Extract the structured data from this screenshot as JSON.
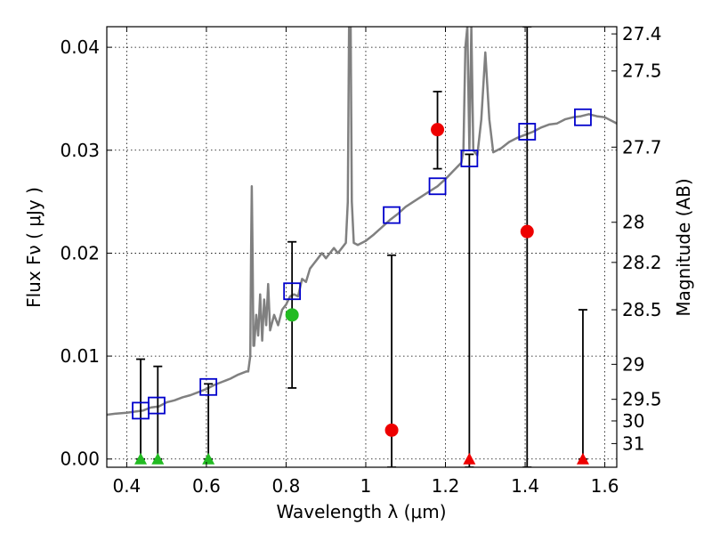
{
  "chart_data": {
    "type": "scatter",
    "title": "",
    "xlabel": "Wavelength  λ (μm)",
    "ylabel": "Flux  Fν  ( μJy )",
    "y2label": "Magnitude (AB)",
    "xlim": [
      0.35,
      1.63
    ],
    "ylim": [
      -0.0008,
      0.042
    ],
    "grid": true,
    "xticks": [
      0.4,
      0.6,
      0.8,
      1.0,
      1.2,
      1.4,
      1.6
    ],
    "xtick_labels": [
      "0.4",
      "0.6",
      "0.8",
      "1",
      "1.2",
      "1.4",
      "1.6"
    ],
    "yticks": [
      0.0,
      0.01,
      0.02,
      0.03,
      0.04
    ],
    "ytick_labels": [
      "0.00",
      "0.01",
      "0.02",
      "0.03",
      "0.04"
    ],
    "mag_ticks": [
      {
        "flux": 0.0413,
        "label": "27.4"
      },
      {
        "flux": 0.0377,
        "label": "27.5"
      },
      {
        "flux": 0.0303,
        "label": "27.7"
      },
      {
        "flux": 0.023,
        "label": "28"
      },
      {
        "flux": 0.0191,
        "label": "28.2"
      },
      {
        "flux": 0.0145,
        "label": "28.5"
      },
      {
        "flux": 0.0092,
        "label": "29"
      },
      {
        "flux": 0.0058,
        "label": "29.5"
      },
      {
        "flux": 0.0037,
        "label": "30"
      },
      {
        "flux": 0.0015,
        "label": "31"
      }
    ],
    "colors": {
      "sed": "#808080",
      "model_box": "#0000cc",
      "detection_green": "#22bb22",
      "detection_red": "#ee0000",
      "errorbar": "#000000"
    },
    "sed_curve": [
      [
        0.35,
        0.0043
      ],
      [
        0.37,
        0.0044
      ],
      [
        0.4,
        0.0045
      ],
      [
        0.42,
        0.0046
      ],
      [
        0.44,
        0.0047
      ],
      [
        0.46,
        0.005
      ],
      [
        0.48,
        0.0051
      ],
      [
        0.5,
        0.0055
      ],
      [
        0.52,
        0.0057
      ],
      [
        0.54,
        0.006
      ],
      [
        0.56,
        0.0062
      ],
      [
        0.58,
        0.0065
      ],
      [
        0.6,
        0.0068
      ],
      [
        0.62,
        0.0072
      ],
      [
        0.64,
        0.0075
      ],
      [
        0.66,
        0.0078
      ],
      [
        0.68,
        0.0082
      ],
      [
        0.7,
        0.0085
      ],
      [
        0.705,
        0.0085
      ],
      [
        0.71,
        0.01
      ],
      [
        0.712,
        0.02
      ],
      [
        0.714,
        0.0265
      ],
      [
        0.716,
        0.02
      ],
      [
        0.718,
        0.011
      ],
      [
        0.72,
        0.011
      ],
      [
        0.725,
        0.014
      ],
      [
        0.73,
        0.012
      ],
      [
        0.735,
        0.016
      ],
      [
        0.74,
        0.0115
      ],
      [
        0.745,
        0.0155
      ],
      [
        0.75,
        0.013
      ],
      [
        0.755,
        0.017
      ],
      [
        0.76,
        0.0125
      ],
      [
        0.77,
        0.014
      ],
      [
        0.78,
        0.013
      ],
      [
        0.79,
        0.0145
      ],
      [
        0.8,
        0.015
      ],
      [
        0.81,
        0.0158
      ],
      [
        0.82,
        0.016
      ],
      [
        0.83,
        0.0158
      ],
      [
        0.84,
        0.0175
      ],
      [
        0.85,
        0.0172
      ],
      [
        0.86,
        0.0185
      ],
      [
        0.87,
        0.019
      ],
      [
        0.88,
        0.0195
      ],
      [
        0.89,
        0.02
      ],
      [
        0.9,
        0.0195
      ],
      [
        0.91,
        0.02
      ],
      [
        0.92,
        0.0205
      ],
      [
        0.93,
        0.02
      ],
      [
        0.94,
        0.0205
      ],
      [
        0.95,
        0.021
      ],
      [
        0.955,
        0.025
      ],
      [
        0.958,
        0.042
      ],
      [
        0.962,
        0.042
      ],
      [
        0.965,
        0.025
      ],
      [
        0.97,
        0.021
      ],
      [
        0.98,
        0.0208
      ],
      [
        1.0,
        0.0212
      ],
      [
        1.02,
        0.0218
      ],
      [
        1.04,
        0.0225
      ],
      [
        1.06,
        0.0232
      ],
      [
        1.08,
        0.0238
      ],
      [
        1.1,
        0.0245
      ],
      [
        1.12,
        0.025
      ],
      [
        1.14,
        0.0255
      ],
      [
        1.16,
        0.026
      ],
      [
        1.18,
        0.0265
      ],
      [
        1.2,
        0.0272
      ],
      [
        1.22,
        0.028
      ],
      [
        1.24,
        0.0288
      ],
      [
        1.245,
        0.03
      ],
      [
        1.25,
        0.04
      ],
      [
        1.255,
        0.042
      ],
      [
        1.26,
        0.03
      ],
      [
        1.265,
        0.042
      ],
      [
        1.27,
        0.03
      ],
      [
        1.28,
        0.0295
      ],
      [
        1.29,
        0.033
      ],
      [
        1.3,
        0.0395
      ],
      [
        1.31,
        0.033
      ],
      [
        1.32,
        0.0298
      ],
      [
        1.34,
        0.0302
      ],
      [
        1.36,
        0.0308
      ],
      [
        1.38,
        0.0312
      ],
      [
        1.4,
        0.0315
      ],
      [
        1.42,
        0.0318
      ],
      [
        1.44,
        0.0322
      ],
      [
        1.46,
        0.0325
      ],
      [
        1.48,
        0.0326
      ],
      [
        1.5,
        0.033
      ],
      [
        1.52,
        0.0332
      ],
      [
        1.54,
        0.0333
      ],
      [
        1.56,
        0.0335
      ],
      [
        1.58,
        0.0333
      ],
      [
        1.6,
        0.0332
      ],
      [
        1.62,
        0.0328
      ],
      [
        1.63,
        0.0326
      ]
    ],
    "model_boxes": [
      {
        "x": 0.435,
        "y": 0.0047
      },
      {
        "x": 0.475,
        "y": 0.0052
      },
      {
        "x": 0.605,
        "y": 0.007
      },
      {
        "x": 0.815,
        "y": 0.0163
      },
      {
        "x": 1.065,
        "y": 0.0237
      },
      {
        "x": 1.18,
        "y": 0.0265
      },
      {
        "x": 1.26,
        "y": 0.0292
      },
      {
        "x": 1.405,
        "y": 0.0318
      },
      {
        "x": 1.545,
        "y": 0.0332
      }
    ],
    "errorbars": [
      {
        "x": 0.435,
        "low": 0.0,
        "high": 0.0097
      },
      {
        "x": 0.478,
        "low": 0.0,
        "high": 0.009
      },
      {
        "x": 0.605,
        "low": 0.0,
        "high": 0.0073
      },
      {
        "x": 0.815,
        "low": 0.0069,
        "high": 0.0211
      },
      {
        "x": 1.065,
        "low": -0.0008,
        "high": 0.0198
      },
      {
        "x": 1.18,
        "low": 0.0282,
        "high": 0.0357
      },
      {
        "x": 1.26,
        "low": -0.0008,
        "high": 0.0296
      },
      {
        "x": 1.405,
        "low": -0.0008,
        "high": 0.042
      },
      {
        "x": 1.545,
        "low": 0.0,
        "high": 0.0145
      }
    ],
    "points": [
      {
        "x": 0.815,
        "y": 0.014,
        "color": "green"
      },
      {
        "x": 1.065,
        "y": 0.0028,
        "color": "red"
      },
      {
        "x": 1.18,
        "y": 0.032,
        "color": "red"
      },
      {
        "x": 1.405,
        "y": 0.0221,
        "color": "red"
      }
    ],
    "upper_limits": [
      {
        "x": 0.435,
        "y": 0.0,
        "color": "green"
      },
      {
        "x": 0.478,
        "y": 0.0,
        "color": "green"
      },
      {
        "x": 0.605,
        "y": 0.0,
        "color": "green"
      },
      {
        "x": 1.26,
        "y": 0.0,
        "color": "red"
      },
      {
        "x": 1.545,
        "y": 0.0,
        "color": "red"
      }
    ]
  }
}
